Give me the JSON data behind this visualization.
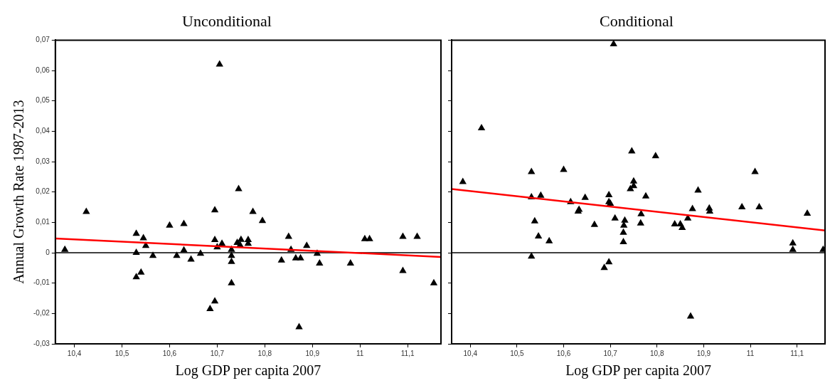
{
  "chart_data": [
    {
      "type": "scatter",
      "title": "Unconditional",
      "xlabel": "Log GDP per capita 2007",
      "ylabel": "Annual Growth Rate 1987-2013",
      "grid": false,
      "xlim": [
        10.36,
        11.17
      ],
      "ylim": [
        -0.03,
        0.07
      ],
      "xticks": [
        {
          "value": 10.4,
          "label": "10,4"
        },
        {
          "value": 10.5,
          "label": "10,5"
        },
        {
          "value": 10.6,
          "label": "10,6"
        },
        {
          "value": 10.7,
          "label": "10,7"
        },
        {
          "value": 10.8,
          "label": "10,8"
        },
        {
          "value": 10.9,
          "label": "10,9"
        },
        11,
        {
          "value": 11.1,
          "label": "11,1"
        }
      ],
      "yticks": [
        {
          "value": -0.03,
          "label": "-0,03"
        },
        {
          "value": -0.02,
          "label": "-0,02"
        },
        {
          "value": -0.01,
          "label": "-0,01"
        },
        0,
        {
          "value": 0.01,
          "label": "0,01"
        },
        {
          "value": 0.02,
          "label": "0,02"
        },
        {
          "value": 0.03,
          "label": "0,03"
        },
        {
          "value": 0.04,
          "label": "0,04"
        },
        {
          "value": 0.05,
          "label": "0,05"
        },
        {
          "value": 0.06,
          "label": "0,06"
        },
        {
          "value": 0.07,
          "label": "0,07"
        }
      ],
      "ref_lines": [
        {
          "axis": "y",
          "value": 0,
          "color": "#000000"
        }
      ],
      "series": [
        {
          "marker": "triangle",
          "color": "#000000",
          "x": [
            10.38,
            10.425,
            10.53,
            10.53,
            10.53,
            10.54,
            10.545,
            10.55,
            10.565,
            10.6,
            10.615,
            10.63,
            10.63,
            10.645,
            10.665,
            10.685,
            10.695,
            10.695,
            10.695,
            10.7,
            10.705,
            10.71,
            10.73,
            10.73,
            10.73,
            10.73,
            10.742,
            10.745,
            10.75,
            10.748,
            10.765,
            10.765,
            10.775,
            10.795,
            10.835,
            10.85,
            10.855,
            10.865,
            10.875,
            10.872,
            10.888,
            10.91,
            10.915,
            10.98,
            11.01,
            11.02,
            11.09,
            11.09,
            11.12,
            11.155
          ],
          "values": [
            0.001,
            0.0135,
            0.0063,
            0,
            -0.008,
            -0.0065,
            0.0048,
            0.0023,
            -0.001,
            0.009,
            -0.001,
            0.0095,
            0.0008,
            -0.0022,
            -0.0003,
            -0.0185,
            -0.016,
            0.014,
            0.0042,
            0.0018,
            0.062,
            0.003,
            0.001,
            -0.001,
            -0.003,
            -0.01,
            0.0033,
            0.021,
            0.0043,
            0.0025,
            0.0042,
            0.003,
            0.0135,
            0.0105,
            -0.0025,
            0.0053,
            0.001,
            -0.0018,
            -0.0018,
            -0.0245,
            0.0023,
            -0.0003,
            -0.0035,
            -0.0035,
            0.0045,
            0.0045,
            0.0053,
            -0.006,
            0.0053,
            -0.01
          ]
        },
        {
          "type": "line",
          "marker": "none",
          "color": "#ff0000",
          "x": [
            10.36,
            11.17
          ],
          "values": [
            0.0047,
            -0.0014
          ]
        }
      ]
    },
    {
      "type": "scatter",
      "title": "Conditional",
      "xlabel": "Log GDP per capita 2007",
      "grid": false,
      "tick_labels": "x",
      "xlim": [
        10.36,
        11.16
      ],
      "ylim": [
        -0.03,
        0.07
      ],
      "xticks": [
        {
          "value": 10.4,
          "label": "10,4"
        },
        {
          "value": 10.5,
          "label": "10,5"
        },
        {
          "value": 10.6,
          "label": "10,6"
        },
        {
          "value": 10.7,
          "label": "10,7"
        },
        {
          "value": 10.8,
          "label": "10,8"
        },
        {
          "value": 10.9,
          "label": "10,9"
        },
        11,
        {
          "value": 11.1,
          "label": "11,1"
        }
      ],
      "yticks": [
        {
          "value": -0.03,
          "label": null
        },
        {
          "value": -0.02,
          "label": null
        },
        {
          "value": -0.01,
          "label": null
        },
        {
          "value": 0,
          "label": null
        },
        {
          "value": 0.01,
          "label": null
        },
        {
          "value": 0.02,
          "label": null
        },
        {
          "value": 0.03,
          "label": null
        },
        {
          "value": 0.04,
          "label": null
        },
        {
          "value": 0.05,
          "label": null
        },
        {
          "value": 0.06,
          "label": null
        },
        {
          "value": 0.07,
          "label": null
        }
      ],
      "ref_lines": [
        {
          "axis": "y",
          "value": 0,
          "color": "#000000"
        }
      ],
      "series": [
        {
          "marker": "triangle",
          "color": "#000000",
          "x": [
            10.384,
            10.424,
            10.531,
            10.531,
            10.531,
            10.538,
            10.546,
            10.551,
            10.569,
            10.6,
            10.615,
            10.631,
            10.633,
            10.646,
            10.666,
            10.687,
            10.697,
            10.697,
            10.697,
            10.7,
            10.707,
            10.71,
            10.728,
            10.728,
            10.729,
            10.731,
            10.743,
            10.746,
            10.75,
            10.75,
            10.797,
            10.776,
            10.766,
            10.765,
            10.838,
            10.85,
            10.854,
            10.866,
            10.876,
            10.888,
            10.872,
            10.912,
            10.913,
            10.982,
            11.01,
            11.019,
            11.091,
            11.091,
            11.122,
            11.156
          ],
          "values": [
            0.0233,
            0.041,
            0.0266,
            0.0183,
            -0.0012,
            0.0104,
            0.0054,
            0.0188,
            0.0038,
            0.0273,
            0.0167,
            0.0136,
            0.0142,
            0.0181,
            0.0092,
            -0.005,
            -0.0031,
            0.019,
            0.0167,
            0.0162,
            0.0687,
            0.0113,
            0.0066,
            0.0035,
            0.009,
            0.0106,
            0.021,
            0.0334,
            0.0235,
            0.022,
            0.0318,
            0.0186,
            0.0127,
            0.0097,
            0.0094,
            0.0094,
            0.0082,
            0.0113,
            0.0144,
            0.0205,
            -0.021,
            0.0146,
            0.0136,
            0.015,
            0.0266,
            0.015,
            0.0031,
            0.001,
            0.0129,
            0.001
          ]
        },
        {
          "type": "line",
          "marker": "none",
          "color": "#ff0000",
          "x": [
            10.36,
            11.16
          ],
          "values": [
            0.021,
            0.0073
          ]
        }
      ]
    }
  ]
}
